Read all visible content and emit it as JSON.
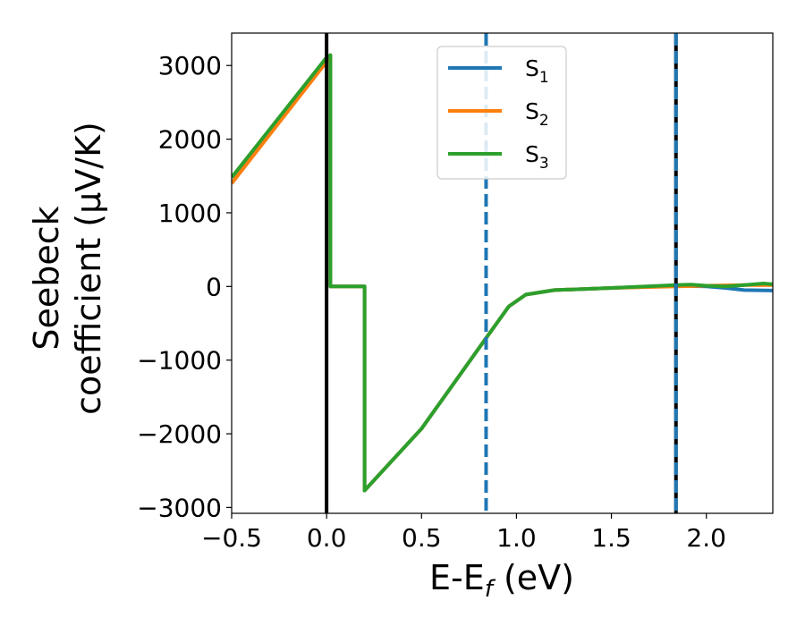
{
  "chart_data": {
    "type": "line",
    "xlabel": "E-E_f (eV)",
    "ylabel": [
      "Seebeck",
      "coefficient  (μV/K)"
    ],
    "xlim": [
      -0.5,
      2.35
    ],
    "ylim": [
      -3080,
      3440
    ],
    "x_ticks": [
      -0.5,
      0.0,
      0.5,
      1.0,
      1.5,
      2.0
    ],
    "x_tick_labels": [
      "−0.5",
      "0.0",
      "0.5",
      "1.0",
      "1.5",
      "2.0"
    ],
    "y_ticks": [
      -3000,
      -2000,
      -1000,
      0,
      1000,
      2000,
      3000
    ],
    "y_tick_labels": [
      "−3000",
      "−2000",
      "−1000",
      "0",
      "1000",
      "2000",
      "3000"
    ],
    "grid": false,
    "legend_position": "top-center",
    "series": [
      {
        "name": "S1",
        "color": "#1f77b4",
        "points": [
          [
            -0.5,
            1400
          ],
          [
            0.0,
            3080
          ],
          [
            0.02,
            3140
          ],
          [
            0.02,
            0
          ],
          [
            0.2,
            0
          ],
          [
            0.2,
            -2770
          ],
          [
            0.5,
            -1930
          ],
          [
            0.84,
            -700
          ],
          [
            0.96,
            -270
          ],
          [
            1.05,
            -110
          ],
          [
            1.2,
            -50
          ],
          [
            1.5,
            -20
          ],
          [
            1.84,
            10
          ],
          [
            2.0,
            0
          ],
          [
            2.1,
            -20
          ],
          [
            2.2,
            -50
          ],
          [
            2.35,
            -55
          ]
        ]
      },
      {
        "name": "S2",
        "color": "#ff7f0e",
        "points": [
          [
            -0.5,
            1400
          ],
          [
            0.0,
            3050
          ],
          [
            0.02,
            3140
          ],
          [
            0.02,
            0
          ],
          [
            0.2,
            0
          ],
          [
            0.2,
            -2770
          ],
          [
            0.5,
            -1930
          ],
          [
            0.84,
            -700
          ],
          [
            0.96,
            -270
          ],
          [
            1.05,
            -110
          ],
          [
            1.2,
            -50
          ],
          [
            1.5,
            -20
          ],
          [
            1.84,
            0
          ],
          [
            2.0,
            10
          ],
          [
            2.2,
            20
          ],
          [
            2.35,
            20
          ]
        ]
      },
      {
        "name": "S3",
        "color": "#2ca02c",
        "points": [
          [
            -0.5,
            1480
          ],
          [
            0.0,
            3110
          ],
          [
            0.02,
            3140
          ],
          [
            0.02,
            0
          ],
          [
            0.2,
            0
          ],
          [
            0.2,
            -2770
          ],
          [
            0.5,
            -1930
          ],
          [
            0.84,
            -700
          ],
          [
            0.96,
            -270
          ],
          [
            1.05,
            -110
          ],
          [
            1.2,
            -50
          ],
          [
            1.5,
            -20
          ],
          [
            1.84,
            20
          ],
          [
            1.92,
            25
          ],
          [
            2.0,
            10
          ],
          [
            2.1,
            0
          ],
          [
            2.2,
            20
          ],
          [
            2.3,
            40
          ],
          [
            2.35,
            30
          ]
        ]
      }
    ],
    "reference_lines": [
      {
        "x": 0.0,
        "color": "#000000",
        "style": "solid"
      },
      {
        "x": 0.84,
        "color": "#1f77b4",
        "style": "dashed"
      },
      {
        "x": 1.84,
        "color": "#000000",
        "style": "solid"
      },
      {
        "x": 1.84,
        "color": "#1f77b4",
        "style": "dashed"
      }
    ]
  }
}
